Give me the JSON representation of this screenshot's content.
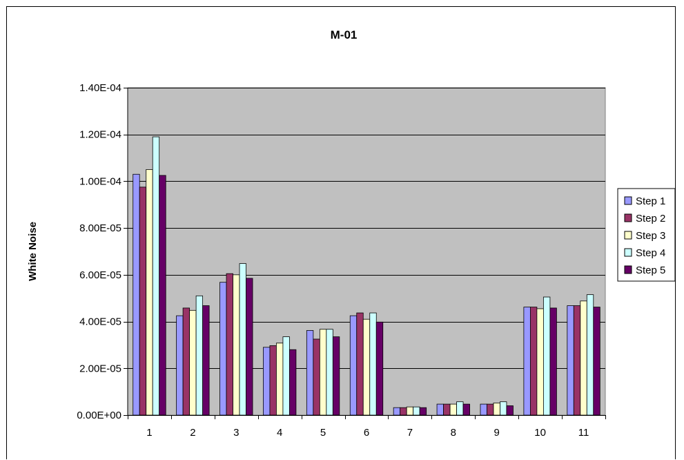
{
  "chart_data": {
    "type": "bar",
    "title": "M-01",
    "xlabel": "",
    "ylabel": "White Noise",
    "categories": [
      "1",
      "2",
      "3",
      "4",
      "5",
      "6",
      "7",
      "8",
      "9",
      "10",
      "11"
    ],
    "ylim": [
      0,
      0.00014
    ],
    "yticks": [
      0,
      2e-05,
      4e-05,
      6e-05,
      8e-05,
      0.0001,
      0.00012,
      0.00014
    ],
    "ytick_labels": [
      "0.00E+00",
      "2.00E-05",
      "4.00E-05",
      "6.00E-05",
      "8.00E-05",
      "1.00E-04",
      "1.20E-04",
      "1.40E-04"
    ],
    "grid": true,
    "plot_background": "#c0c0c0",
    "legend_position": "right",
    "series": [
      {
        "name": "Step 1",
        "color": "#9999ff",
        "values": [
          0.000103,
          4.25e-05,
          5.68e-05,
          2.9e-05,
          3.62e-05,
          4.25e-05,
          3.2e-06,
          4.7e-06,
          4.7e-06,
          4.62e-05,
          4.68e-05
        ]
      },
      {
        "name": "Step 2",
        "color": "#993366",
        "values": [
          9.75e-05,
          4.58e-05,
          6.05e-05,
          2.97e-05,
          3.25e-05,
          4.37e-05,
          3.2e-06,
          4.7e-06,
          4.7e-06,
          4.62e-05,
          4.68e-05
        ]
      },
      {
        "name": "Step 3",
        "color": "#ffffcc",
        "values": [
          0.000105,
          4.48e-05,
          6e-05,
          3.08e-05,
          3.67e-05,
          4.1e-05,
          3.5e-06,
          4.7e-06,
          5.2e-06,
          4.55e-05,
          4.88e-05
        ]
      },
      {
        "name": "Step 4",
        "color": "#ccffff",
        "values": [
          0.000119,
          5.1e-05,
          6.48e-05,
          3.35e-05,
          3.67e-05,
          4.37e-05,
          3.5e-06,
          5.7e-06,
          5.7e-06,
          5.05e-05,
          5.15e-05
        ]
      },
      {
        "name": "Step 5",
        "color": "#660066",
        "values": [
          0.0001025,
          4.68e-05,
          5.85e-05,
          2.8e-05,
          3.35e-05,
          3.98e-05,
          3.2e-06,
          4.7e-06,
          4e-06,
          4.58e-05,
          4.62e-05
        ]
      }
    ]
  }
}
